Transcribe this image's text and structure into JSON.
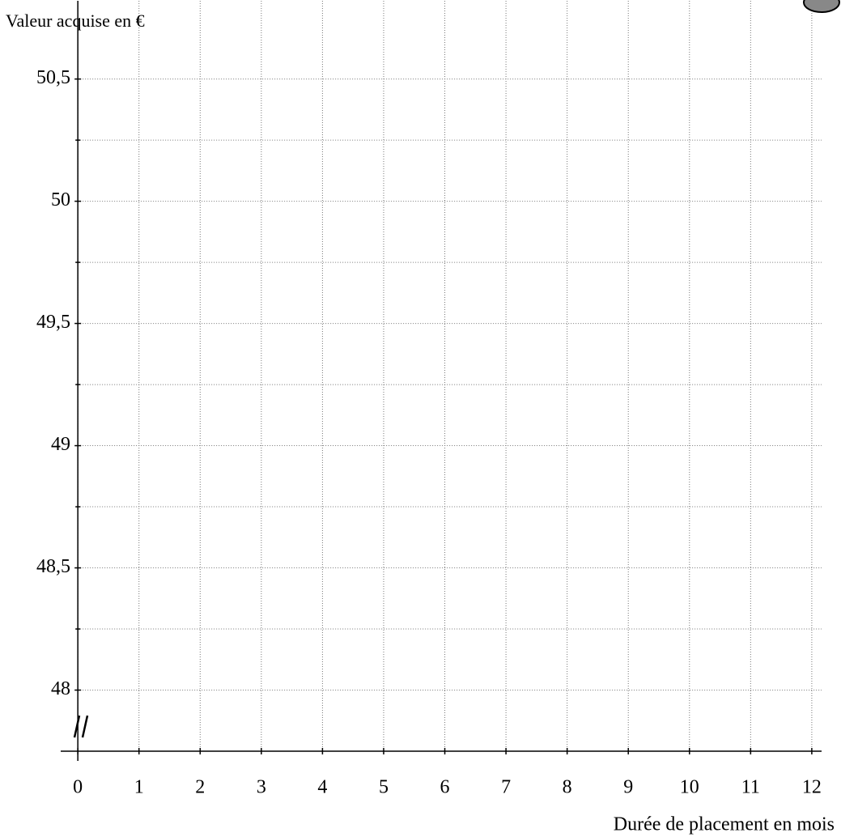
{
  "chart_data": {
    "type": "line",
    "title": "Valeur acquise en €",
    "x_label": "Durée de placement en mois",
    "xlim": [
      -0.28,
      12.16
    ],
    "xticks": [
      0,
      1,
      2,
      3,
      4,
      5,
      6,
      7,
      8,
      9,
      10,
      11,
      12
    ],
    "ylim": [
      47.75,
      50.82
    ],
    "yticks": [
      48,
      {
        "value": 48.5,
        "label": "48,5"
      },
      49,
      {
        "value": 49.5,
        "label": "49,5"
      },
      50,
      {
        "value": 50.5,
        "label": "50,5"
      }
    ],
    "minor_yticks": [
      48.25,
      48.75,
      49.25,
      49.75,
      50.25
    ],
    "grid": true
  }
}
